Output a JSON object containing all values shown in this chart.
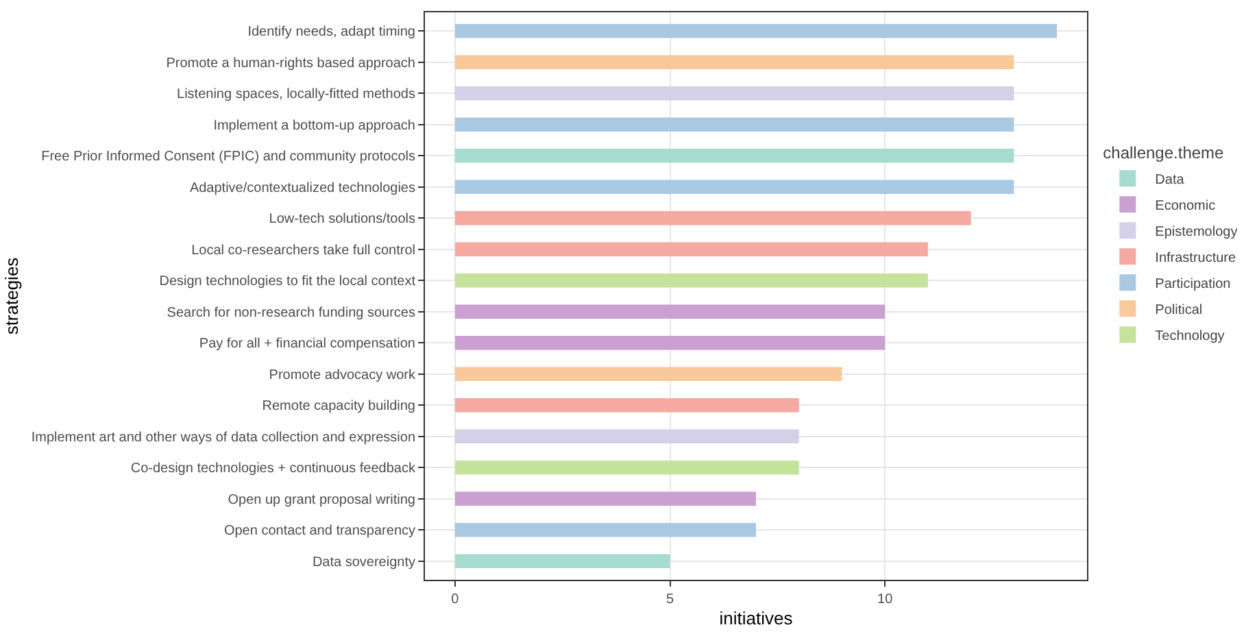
{
  "chart_data": {
    "type": "bar",
    "orientation": "horizontal",
    "xlabel": "initiatives",
    "ylabel": "strategies",
    "legend_title": "challenge.theme",
    "legend": "right",
    "grid": true,
    "categories": [
      "Identify needs, adapt timing",
      "Promote a human-rights based approach",
      "Listening spaces, locally-fitted methods",
      "Implement a bottom-up approach",
      "Free Prior Informed Consent (FPIC) and community protocols",
      "Adaptive/contextualized technologies",
      "Low-tech solutions/tools",
      "Local co-researchers take full control",
      "Design technologies to fit the local context",
      "Search for non-research funding sources",
      "Pay for all + financial compensation",
      "Promote advocacy work",
      "Remote capacity building",
      "Implement art and other ways of data collection and expression",
      "Co-design technologies + continuous feedback",
      "Open up grant proposal writing",
      "Open contact and transparency",
      "Data sovereignty"
    ],
    "xlim": [
      -0.7,
      14.7
    ],
    "xticks": [
      0,
      5,
      10
    ],
    "series": [
      {
        "name": "Data",
        "color": "#a6dccf",
        "values": [
          null,
          null,
          null,
          null,
          13,
          null,
          null,
          null,
          null,
          null,
          null,
          null,
          null,
          null,
          null,
          null,
          null,
          5
        ]
      },
      {
        "name": "Economic",
        "color": "#c9a0cf",
        "values": [
          null,
          null,
          null,
          null,
          null,
          null,
          null,
          null,
          null,
          10,
          10,
          null,
          null,
          null,
          null,
          7,
          null,
          null
        ]
      },
      {
        "name": "Epistemology",
        "color": "#d4d0e7",
        "values": [
          null,
          null,
          13,
          null,
          null,
          null,
          null,
          null,
          null,
          null,
          null,
          null,
          null,
          8,
          null,
          null,
          null,
          null
        ]
      },
      {
        "name": "Infrastructure",
        "color": "#f5a9a0",
        "values": [
          null,
          null,
          null,
          null,
          null,
          null,
          12,
          11,
          null,
          null,
          null,
          null,
          8,
          null,
          null,
          null,
          null,
          null
        ]
      },
      {
        "name": "Participation",
        "color": "#a9c9e2",
        "values": [
          14,
          null,
          null,
          13,
          null,
          13,
          null,
          null,
          null,
          null,
          null,
          null,
          null,
          null,
          null,
          null,
          7,
          null
        ]
      },
      {
        "name": "Political",
        "color": "#fac99b",
        "values": [
          null,
          13,
          null,
          null,
          null,
          null,
          null,
          null,
          null,
          null,
          null,
          9,
          null,
          null,
          null,
          null,
          null,
          null
        ]
      },
      {
        "name": "Technology",
        "color": "#c6e39c",
        "values": [
          null,
          null,
          null,
          null,
          null,
          null,
          null,
          null,
          11,
          null,
          null,
          null,
          null,
          null,
          8,
          null,
          null,
          null
        ]
      }
    ]
  }
}
